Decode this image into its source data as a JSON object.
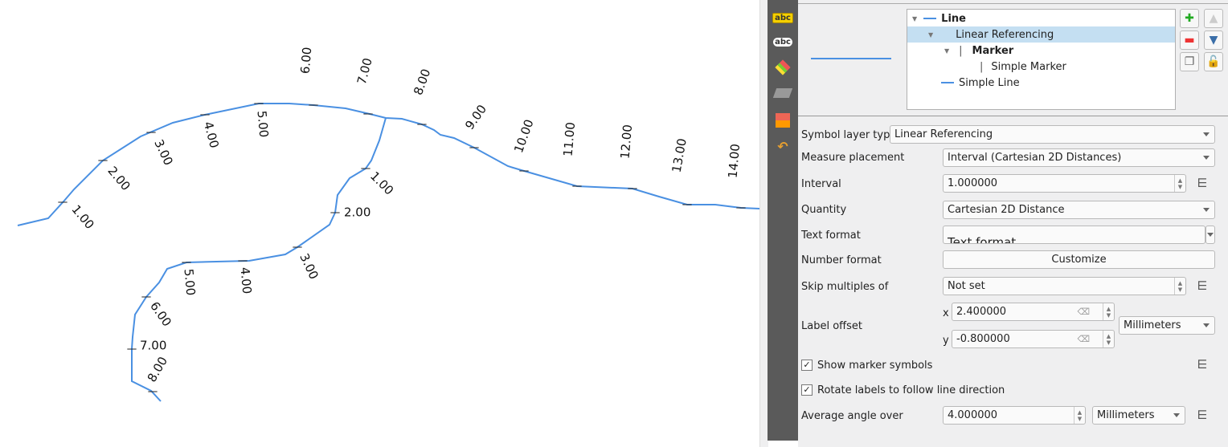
{
  "map": {
    "line_color": "#4a90e2",
    "main_labels": [
      "1.00",
      "2.00",
      "3.00",
      "4.00",
      "5.00",
      "6.00",
      "7.00",
      "8.00",
      "9.00",
      "10.00",
      "11.00",
      "12.00",
      "13.00",
      "14.00"
    ],
    "branch_labels": [
      "1.00",
      "2.00",
      "3.00",
      "4.00",
      "5.00",
      "6.00",
      "7.00",
      "8.00"
    ]
  },
  "toolbar": {
    "icons": [
      "label-callout-icon",
      "labels-icon",
      "3d-cube-icon",
      "diagram-icon",
      "rendering-order-icon",
      "history-icon"
    ]
  },
  "tree": {
    "items": [
      "Line",
      "Linear Referencing",
      "Marker",
      "Simple Marker",
      "Simple Line"
    ],
    "selected_index": 1
  },
  "form": {
    "symbol_layer_type_label": "Symbol layer type",
    "symbol_layer_type": "Linear Referencing",
    "measure_placement_label": "Measure placement",
    "measure_placement": "Interval (Cartesian 2D Distances)",
    "interval_label": "Interval",
    "interval": "1.000000",
    "quantity_label": "Quantity",
    "quantity": "Cartesian 2D Distance",
    "text_format_label": "Text format",
    "text_format": "Text format",
    "number_format_label": "Number format",
    "customize": "Customize",
    "skip_label": "Skip multiples of",
    "skip": "Not set",
    "label_offset_label": "Label offset",
    "x_label": "x",
    "x": "2.400000",
    "y_label": "y",
    "y": "-0.800000",
    "offset_unit": "Millimeters",
    "show_markers": "Show marker symbols",
    "show_markers_checked": true,
    "rotate_labels": "Rotate labels to follow line direction",
    "rotate_labels_checked": true,
    "avg_angle_label": "Average angle over",
    "avg_angle": "4.000000",
    "avg_angle_unit": "Millimeters"
  }
}
